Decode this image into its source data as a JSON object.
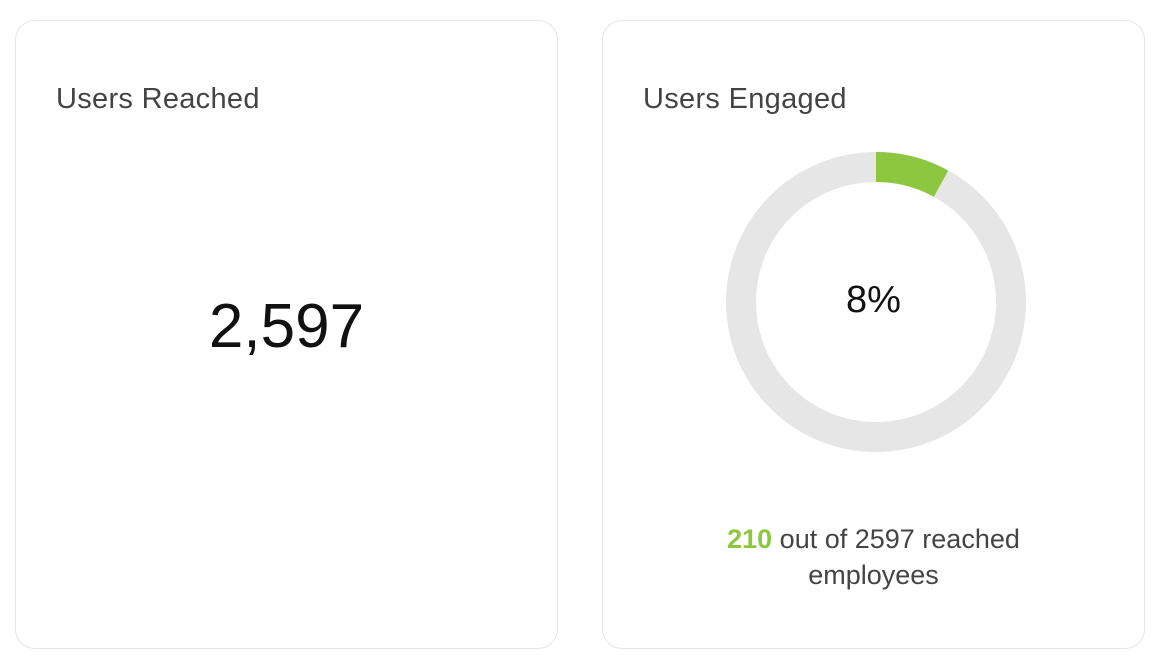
{
  "cards": {
    "reached": {
      "title": "Users Reached",
      "value": "2,597"
    },
    "engaged": {
      "title": "Users Engaged",
      "percent_label": "8%",
      "percent": 8,
      "engaged_count": "210",
      "footer_line1_rest": " out of 2597 reached",
      "footer_line2": "employees"
    }
  },
  "colors": {
    "accent": "#8dc63f",
    "track": "#e6e6e6"
  }
}
